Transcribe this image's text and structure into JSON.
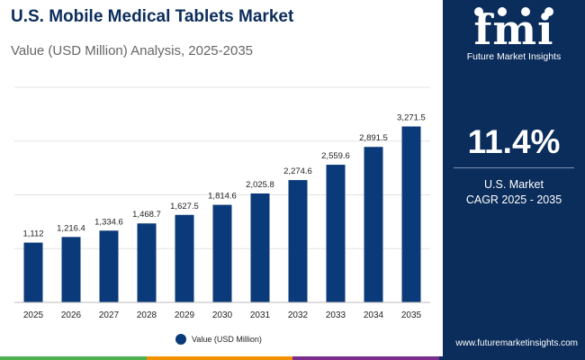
{
  "header": {
    "title": "U.S. Mobile Medical Tablets Market",
    "subtitle": "Value (USD Million) Analysis, 2025-2035"
  },
  "brand": {
    "logo_text": "fmi",
    "logo_subtext": "Future Market Insights",
    "url": "www.futuremarketinsights.com"
  },
  "cagr": {
    "value": "11.4%",
    "label_line1": "U.S. Market",
    "label_line2": "CAGR 2025 - 2035"
  },
  "colors": {
    "bar": "#0b3a7a",
    "panel": "#0b2d5b",
    "grid": "#e3e3e3",
    "bottom_stripes": [
      "#4caf50",
      "#f39200",
      "#7b2d8e",
      "#0b2d5b"
    ]
  },
  "chart_data": {
    "type": "bar",
    "categories": [
      "2025",
      "2026",
      "2027",
      "2028",
      "2029",
      "2030",
      "2031",
      "2032",
      "2033",
      "2034",
      "2035"
    ],
    "series": [
      {
        "name": "Value (USD Million)",
        "values": [
          1112,
          1216.4,
          1334.6,
          1468.7,
          1627.5,
          1814.6,
          2025.8,
          2274.6,
          2559.6,
          2891.5,
          3271.5
        ]
      }
    ],
    "data_labels": [
      "1,112",
      "1,216.4",
      "1,334.6",
      "1,468.7",
      "1,627.5",
      "1,814.6",
      "2,025.8",
      "2,274.6",
      "2,559.6",
      "2,891.5",
      "3,271.5"
    ],
    "ylim": [
      0,
      4000
    ],
    "grid": true,
    "legend_position": "bottom-center",
    "title": "",
    "xlabel": "",
    "ylabel": ""
  }
}
